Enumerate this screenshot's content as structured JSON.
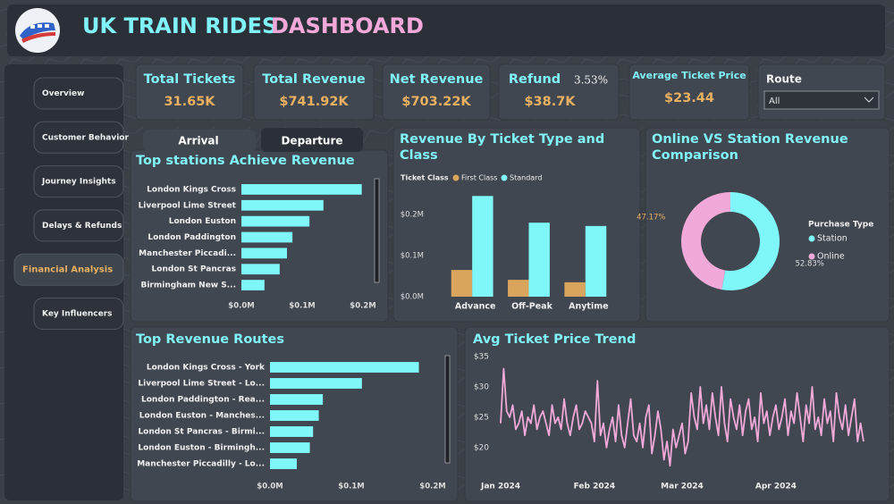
{
  "header": {
    "title": "UK TRAIN RIDES",
    "highlight": "DASHBOARD"
  },
  "nav": [
    "Overview",
    "Customer Behavior",
    "Journey Insights",
    "Delays & Refunds",
    "Financial Analysis",
    "Key Influencers"
  ],
  "kpis": [
    {
      "label": "Total Tickets",
      "value": "31.65K"
    },
    {
      "label": "Total Revenue",
      "value": "$741.92K"
    },
    {
      "label": "Net Revenue",
      "value": "$703.22K"
    },
    {
      "label": "Refund",
      "value": "$38.7K",
      "extra": "3.53%"
    },
    {
      "label": "Average Ticket Price",
      "value": "$23.44"
    }
  ],
  "route": {
    "label": "Route",
    "value": "All"
  },
  "tabs": [
    "Arrival",
    "Departure"
  ],
  "chart_data": [
    {
      "type": "hbar",
      "title": "Top stations Achieve Revenue",
      "categories": [
        "London Kings Cross",
        "Liverpool Lime Street",
        "London Euston",
        "London Paddington",
        "Manchester Piccadi...",
        "London St Pancras",
        "Birmingham New S..."
      ],
      "values": [
        198000,
        135000,
        112000,
        84000,
        75000,
        63000,
        38000
      ],
      "color": "#7ff6f7",
      "xlim": [
        0,
        200000
      ],
      "xticks": [
        {
          "value": 0,
          "label": "$0.0M"
        },
        {
          "value": 100000,
          "label": "$0.1M"
        },
        {
          "value": 200000,
          "label": "$0.2M"
        }
      ]
    },
    {
      "type": "grouped-bar",
      "title": "Revenue By Ticket Type and Class",
      "legend_title": "Ticket Class",
      "categories": [
        "Advance",
        "Off-Peak",
        "Anytime"
      ],
      "series": [
        {
          "name": "First Class",
          "color": "#d9a55c",
          "values": [
            65000,
            41000,
            35000
          ]
        },
        {
          "name": "Standard",
          "color": "#7ff6f7",
          "values": [
            245000,
            180000,
            172000
          ]
        }
      ],
      "ylim": [
        0,
        250000
      ],
      "yticks": [
        {
          "value": 0,
          "label": "$0.0M"
        },
        {
          "value": 100000,
          "label": "$0.1M"
        },
        {
          "value": 200000,
          "label": "$0.2M"
        }
      ]
    },
    {
      "type": "donut",
      "title": "Online VS Station Revenue Comparison",
      "legend_title": "Purchase Type",
      "categories": [
        "Station",
        "Online"
      ],
      "values": [
        52.83,
        47.17
      ],
      "value_labels": [
        "52.83%",
        "47.17%"
      ],
      "colors": [
        "#7ff6f7",
        "#f0a9d8"
      ]
    },
    {
      "type": "hbar",
      "title": "Top Revenue Routes",
      "categories": [
        "London Kings Cross - York",
        "Liverpool Lime Street - Lo...",
        "London Paddington - Rea...",
        "London Euston - Manches...",
        "London St Pancras - Birmi...",
        "London Euston - Birmingh...",
        "Manchester Piccadilly - Lo..."
      ],
      "values": [
        183000,
        113000,
        65000,
        60000,
        53000,
        49000,
        33000
      ],
      "color": "#7ff6f7",
      "xlim": [
        0,
        200000
      ],
      "xticks": [
        {
          "value": 0,
          "label": "$0.0M"
        },
        {
          "value": 100000,
          "label": "$0.1M"
        },
        {
          "value": 200000,
          "label": "$0.2M"
        }
      ]
    },
    {
      "type": "line",
      "title": "Avg Ticket Price Trend",
      "color": "#f0a9d8",
      "categories": [
        "Jan 2024",
        null,
        null,
        null,
        null,
        null,
        null,
        null,
        null,
        null,
        null,
        null,
        null,
        null,
        null,
        null,
        null,
        null,
        null,
        null,
        null,
        null,
        null,
        null,
        null,
        null,
        null,
        null,
        null,
        null,
        null,
        "Feb 2024",
        null,
        null,
        null,
        null,
        null,
        null,
        null,
        null,
        null,
        null,
        null,
        null,
        null,
        null,
        null,
        null,
        null,
        null,
        null,
        null,
        null,
        null,
        null,
        null,
        null,
        null,
        null,
        null,
        "Mar 2024",
        null,
        null,
        null,
        null,
        null,
        null,
        null,
        null,
        null,
        null,
        null,
        null,
        null,
        null,
        null,
        null,
        null,
        null,
        null,
        null,
        null,
        null,
        null,
        null,
        null,
        null,
        null,
        null,
        null,
        null,
        "Apr 2024",
        null,
        null,
        null,
        null,
        null,
        null,
        null,
        null,
        null,
        null,
        null,
        null,
        null,
        null,
        null,
        null,
        null,
        null,
        null,
        null,
        null,
        null,
        null,
        null,
        null,
        null,
        null,
        null,
        null
      ],
      "values": [
        24,
        33,
        26,
        25,
        27,
        23,
        24,
        26,
        22,
        25,
        24,
        27,
        23,
        25,
        26,
        24,
        22,
        27,
        24,
        25,
        23,
        28,
        24,
        22,
        25,
        27,
        23,
        24,
        26,
        25,
        24,
        21,
        31,
        22,
        24,
        20,
        23,
        25,
        21,
        27,
        22,
        20,
        24,
        28,
        22,
        21,
        24,
        20,
        25,
        27,
        19,
        22,
        26,
        23,
        18,
        21,
        17,
        23,
        20,
        22,
        24,
        19,
        21,
        29,
        25,
        23,
        30,
        24,
        27,
        23,
        29,
        25,
        22,
        30,
        24,
        21,
        28,
        25,
        23,
        27,
        22,
        26,
        28,
        23,
        25,
        21,
        29,
        24,
        26,
        22,
        25,
        27,
        23,
        25,
        28,
        22,
        26,
        24,
        29,
        25,
        21,
        27,
        24,
        30,
        23,
        25,
        22,
        28,
        24,
        26,
        21,
        29,
        25,
        23,
        27,
        22,
        25,
        28,
        21,
        24,
        21
      ],
      "ylim": [
        16,
        35
      ],
      "yticks": [
        {
          "value": 20,
          "label": "$20"
        },
        {
          "value": 25,
          "label": "$25"
        },
        {
          "value": 30,
          "label": "$30"
        },
        {
          "value": 35,
          "label": "$35"
        }
      ]
    }
  ]
}
